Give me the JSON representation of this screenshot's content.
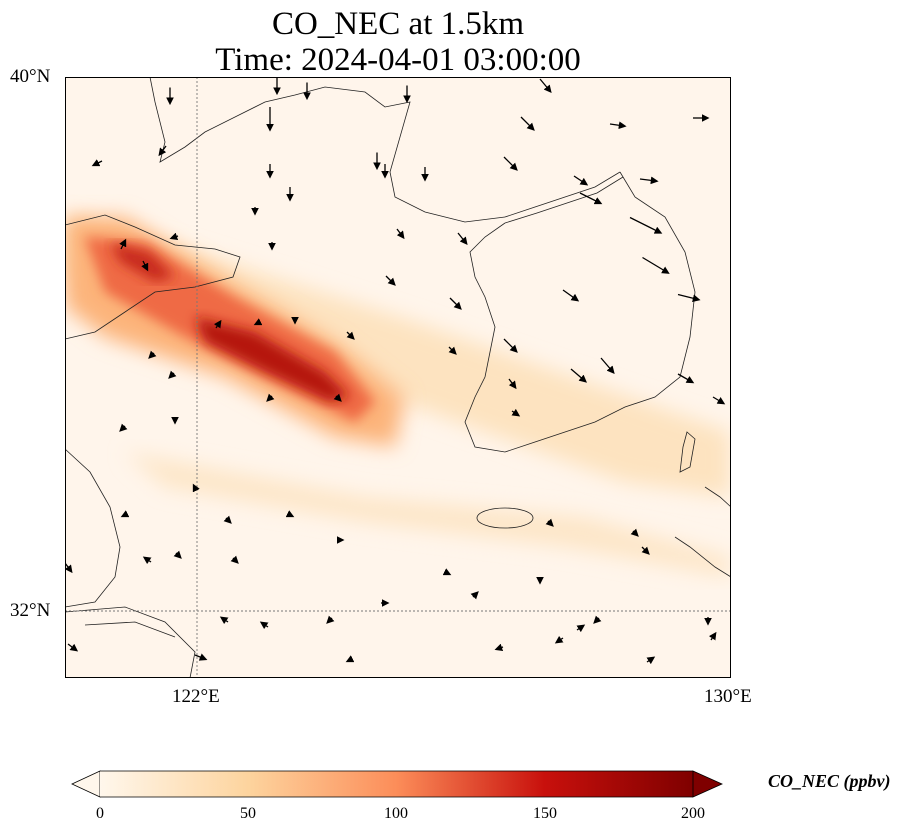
{
  "title": {
    "line1": "CO_NEC at 1.5km",
    "line2": "Time: 2024-04-01 03:00:00"
  },
  "axes": {
    "lat_ticks": [
      "40°N",
      "32°N"
    ],
    "lon_ticks": [
      "122°E",
      "130°E"
    ]
  },
  "colorbar": {
    "label": "CO_NEC (ppbv)",
    "ticks": [
      "0",
      "50",
      "100",
      "150",
      "200"
    ],
    "range": [
      0,
      200
    ],
    "extend": "both",
    "colors": [
      "#fff7ec",
      "#fdd49e",
      "#fc8d59",
      "#d7301f",
      "#7f0000"
    ]
  },
  "chart_data": {
    "type": "heatmap",
    "title": "CO_NEC at 1.5km — Time: 2024-04-01 03:00:00",
    "variable": "CO_NEC",
    "units": "ppbv",
    "lon_range": [
      120,
      130
    ],
    "lat_range": [
      31,
      40
    ],
    "gridlines": {
      "lon": [
        122
      ],
      "lat": [
        32
      ]
    },
    "peak_value_approx": 190,
    "overlay": "wind vectors"
  }
}
